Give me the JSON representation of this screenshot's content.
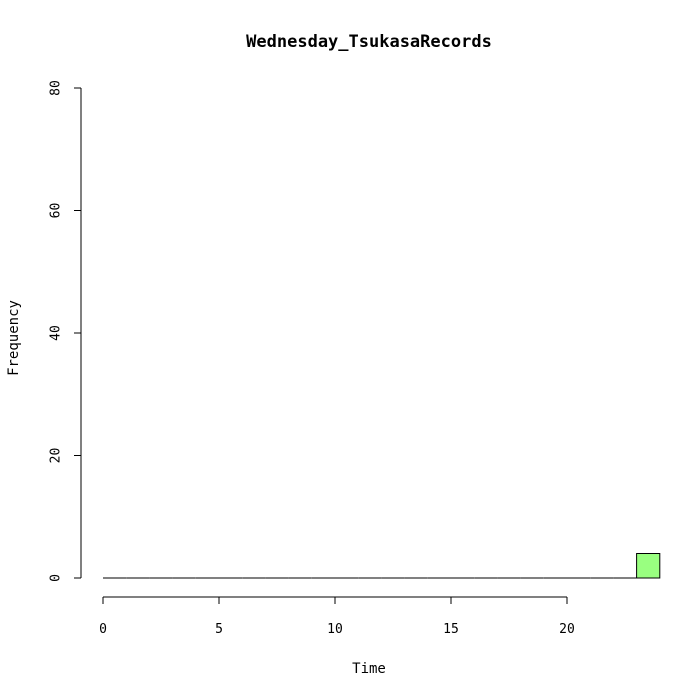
{
  "chart_data": {
    "type": "bar",
    "title": "Wednesday_TsukasaRecords",
    "xlabel": "Time",
    "ylabel": "Frequency",
    "xlim": [
      0,
      24
    ],
    "ylim": [
      0,
      80
    ],
    "x_ticks": [
      0,
      5,
      10,
      15,
      20
    ],
    "y_ticks": [
      0,
      20,
      40,
      60,
      80
    ],
    "bin_width": 1,
    "bins": [
      0,
      1,
      2,
      3,
      4,
      5,
      6,
      7,
      8,
      9,
      10,
      11,
      12,
      13,
      14,
      15,
      16,
      17,
      18,
      19,
      20,
      21,
      22,
      23
    ],
    "values": [
      0,
      0,
      0,
      0,
      0,
      0,
      0,
      0,
      0,
      0,
      0,
      0,
      0,
      0,
      0,
      0,
      0,
      0,
      0,
      0,
      0,
      0,
      0,
      4
    ],
    "bar_color": "#99ff80",
    "grid": false
  }
}
